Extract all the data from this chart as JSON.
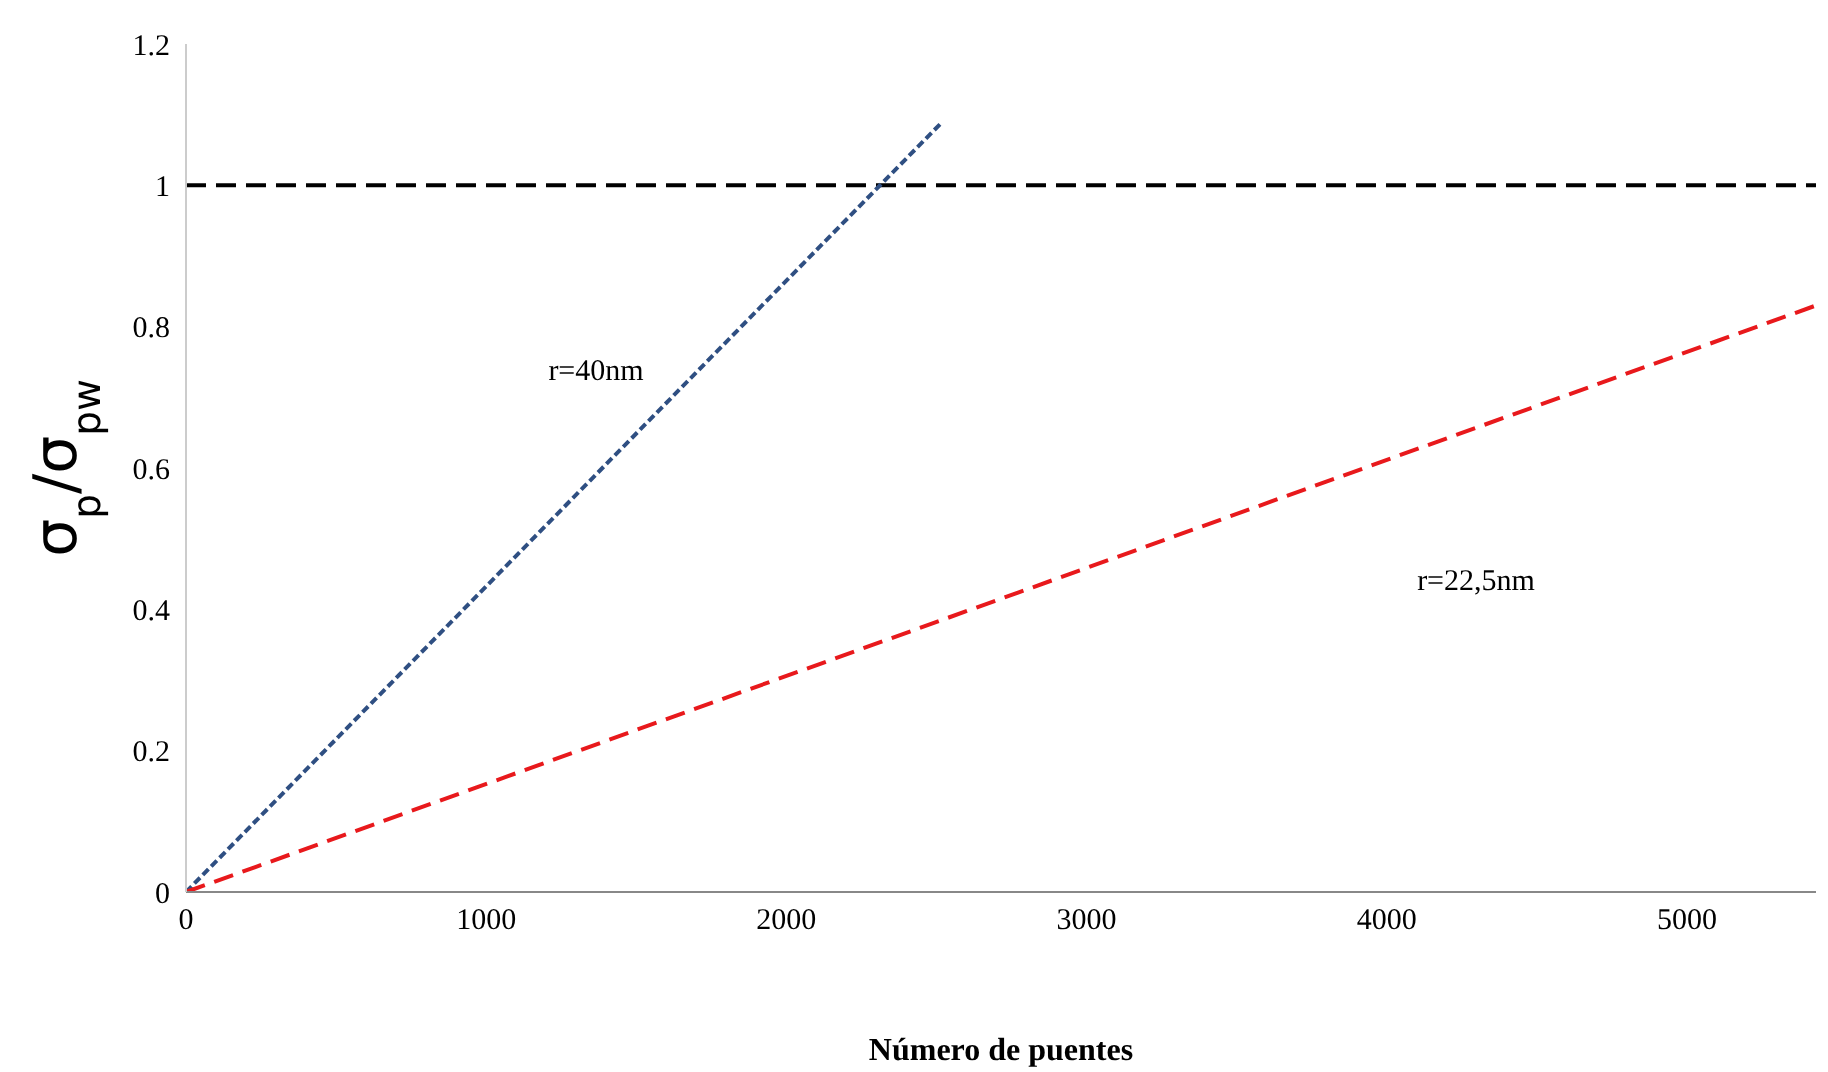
{
  "chart_data": {
    "type": "line",
    "xlabel": "Número de puentes",
    "ylabel": "σ$_{p}$/σ$_{pw}$",
    "series": [
      {
        "x": [
          0,
          2520
        ],
        "values": [
          0,
          1.09
        ],
        "color": "#2f4f82",
        "line_style": "dotted"
      },
      {
        "x": [
          0,
          5430
        ],
        "values": [
          0,
          0.83
        ],
        "color": "#e8191c",
        "line_style": "dashed"
      }
    ],
    "xlim": [
      0,
      5430
    ],
    "xticks": [
      0,
      1000,
      2000,
      3000,
      4000,
      5000
    ],
    "ylim": [
      0,
      1.2
    ],
    "yticks": [
      0,
      0.2,
      0.4,
      0.6,
      0.8,
      1,
      1.2
    ],
    "grid": false,
    "legend": false,
    "marker": "none",
    "ref_lines": [
      {
        "axis": "y",
        "value": 1,
        "color": "#000000",
        "line_style": "dashed"
      }
    ],
    "annotations": [
      "r=40nm",
      "r=22,5nm"
    ]
  }
}
